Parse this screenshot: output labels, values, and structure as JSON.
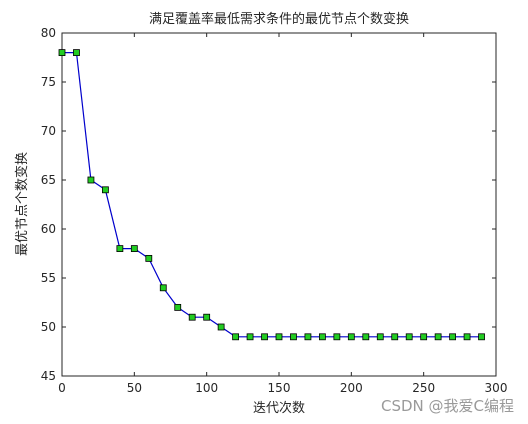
{
  "chart_data": {
    "type": "line",
    "title": "满足覆盖率最低需求条件的最优节点个数变换",
    "xlabel": "迭代次数",
    "ylabel": "最优节点个数变换",
    "xlim": [
      0,
      300
    ],
    "ylim": [
      45,
      80
    ],
    "xticks": [
      0,
      50,
      100,
      150,
      200,
      250,
      300
    ],
    "yticks": [
      45,
      50,
      55,
      60,
      65,
      70,
      75,
      80
    ],
    "grid": false,
    "line_color": "#0000cc",
    "marker": "square",
    "marker_color": "#22cc22",
    "marker_edge_color": "#000000",
    "x": [
      0,
      10,
      20,
      30,
      40,
      50,
      60,
      70,
      80,
      90,
      100,
      110,
      120,
      130,
      140,
      150,
      160,
      170,
      180,
      190,
      200,
      210,
      220,
      230,
      240,
      250,
      260,
      270,
      280,
      290
    ],
    "y": [
      78,
      78,
      65,
      64,
      58,
      58,
      57,
      54,
      52,
      51,
      51,
      50,
      49,
      49,
      49,
      49,
      49,
      49,
      49,
      49,
      49,
      49,
      49,
      49,
      49,
      49,
      49,
      49,
      49,
      49
    ]
  },
  "watermark": "CSDN @我爱C编程"
}
